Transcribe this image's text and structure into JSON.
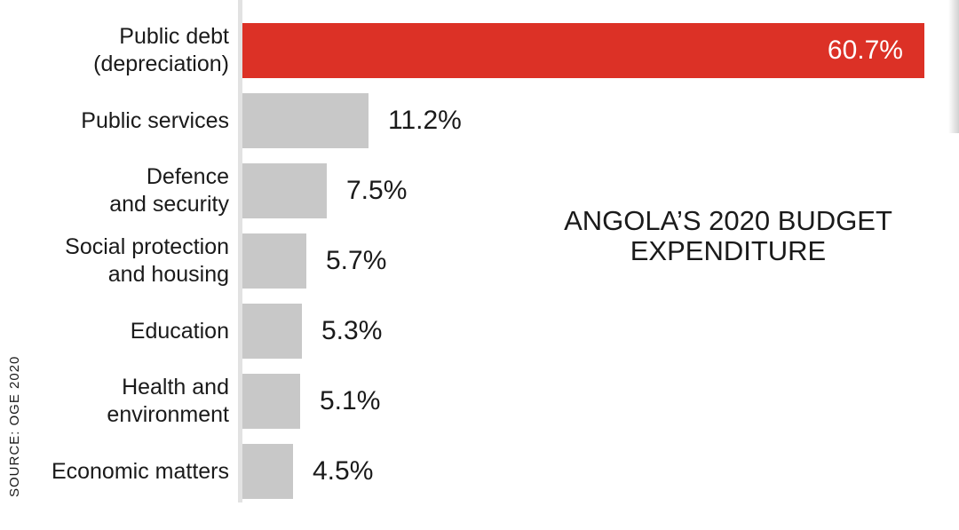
{
  "chart_data": {
    "type": "bar",
    "orientation": "horizontal",
    "title_lines": [
      "ANGOLA’S 2020 BUDGET",
      "EXPENDITURE"
    ],
    "source": "SOURCE: OGE 2020",
    "categories": [
      [
        "Public debt",
        "(depreciation)"
      ],
      [
        "Public services"
      ],
      [
        "Defence",
        "and security"
      ],
      [
        "Social protection",
        "and housing"
      ],
      [
        "Education"
      ],
      [
        "Health and",
        "environment"
      ],
      [
        "Economic matters"
      ]
    ],
    "values": [
      60.7,
      11.2,
      7.5,
      5.7,
      5.3,
      5.1,
      4.5
    ],
    "value_labels": [
      "60.7%",
      "11.2%",
      "7.5%",
      "5.7%",
      "5.3%",
      "5.1%",
      "4.5%"
    ],
    "colors": [
      "#dc3126",
      "#c8c8c8",
      "#c8c8c8",
      "#c8c8c8",
      "#c8c8c8",
      "#c8c8c8",
      "#c8c8c8"
    ],
    "xlim": [
      0,
      60.7
    ],
    "grid": false,
    "legend": "none"
  }
}
